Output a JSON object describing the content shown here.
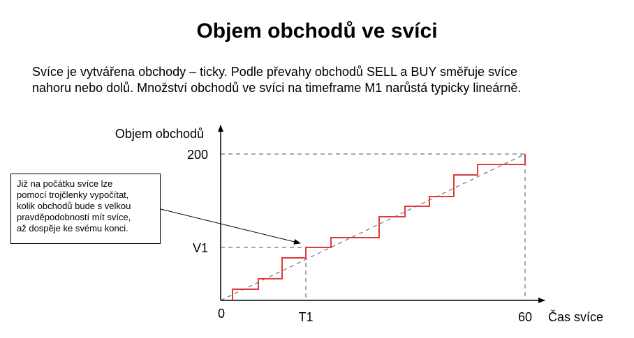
{
  "title": "Objem obchodů ve svíci",
  "description": [
    "Svíce je vytvářena obchody – ticky. Podle převahy obchodů SELL a BUY směřuje svíce",
    "nahoru nebo dolů. Množství obchodů ve svíci na timeframe M1 narůstá typicky lineárně."
  ],
  "note": [
    "Již na počátku svíce lze",
    "pomocí trojčlenky vypočítat,",
    "kolik obchodů bude s velkou",
    "pravděpodobností mít svíce,",
    "až dospěje ke svému konci."
  ],
  "axes": {
    "y_label": "Objem obchodů",
    "x_label": "Čas svíce",
    "origin_label": "0",
    "y_max_label": "200",
    "y_mark_label": "V1",
    "x_mark_label": "T1",
    "x_max_label": "60"
  },
  "colors": {
    "step_line": "#e03a3a",
    "axis": "#000000",
    "guide": "#555555"
  }
}
